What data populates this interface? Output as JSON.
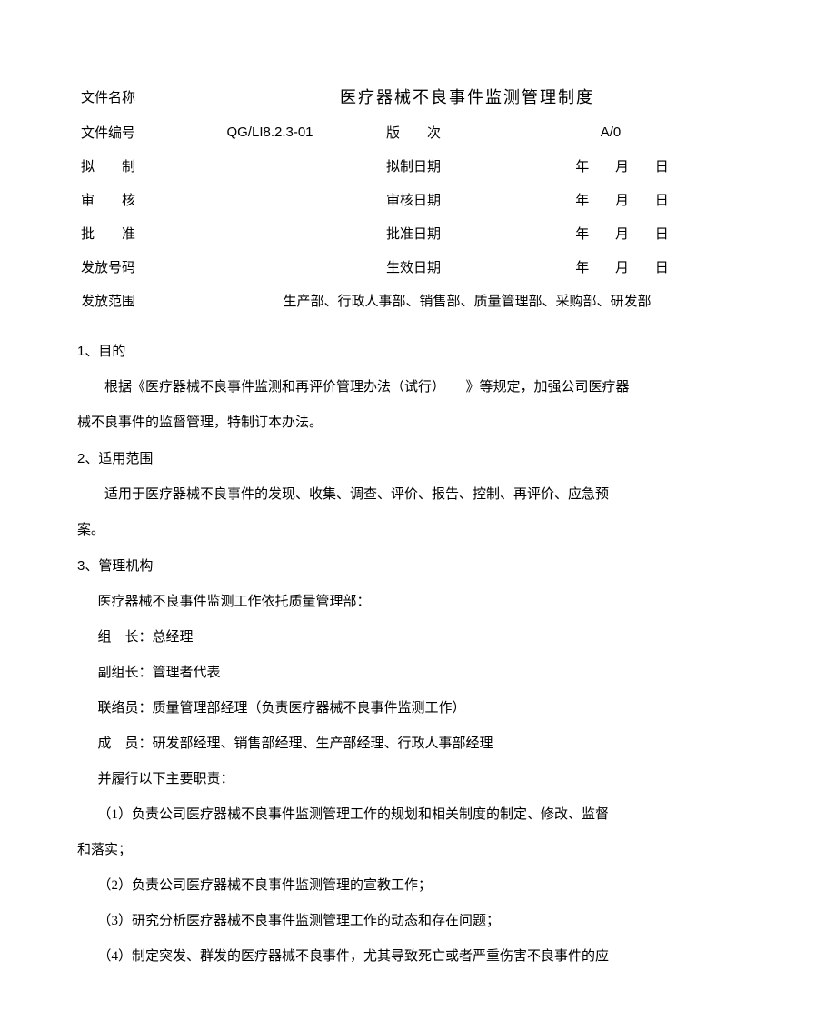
{
  "header": {
    "labels": {
      "doc_name": "文件名称",
      "doc_no": "文件编号",
      "version": "版　　次",
      "draft": "拟　　制",
      "draft_date": "拟制日期",
      "review": "审　　核",
      "review_date": "审核日期",
      "approve": "批　　准",
      "approve_date": "批准日期",
      "issue_no": "发放号码",
      "effective_date": "生效日期",
      "scope": "发放范围"
    },
    "title": "医疗器械不良事件监测管理制度",
    "doc_no_value": "QG/LI8.2.3-01",
    "version_value": "A/0",
    "ymd": {
      "y": "年",
      "m": "月",
      "d": "日"
    },
    "scope_value": "生产部、行政人事部、销售部、质量管理部、采购部、研发部"
  },
  "body": {
    "sec1_no": "1",
    "sec1_title": "、目的",
    "sec1_p1a": "根据《医疗器械不良事件监测和再评价管理办法（试行）　　》等规定，加强公司医疗器",
    "sec1_p1b": "械不良事件的监督管理，特制订本办法。",
    "sec2_no": "2",
    "sec2_title": "、适用范围",
    "sec2_p1a": "适用于医疗器械不良事件的发现、收集、调查、评价、报告、控制、再评价、应急预",
    "sec2_p1b": "案。",
    "sec3_no": "3",
    "sec3_title": "、管理机构",
    "sec3_l1": "医疗器械不良事件监测工作依托质量管理部：",
    "sec3_l2": "组　长：总经理",
    "sec3_l3": "副组长：管理者代表",
    "sec3_l4": "联络员：质量管理部经理（负责医疗器械不良事件监测工作）",
    "sec3_l5": "成　员：研发部经理、销售部经理、生产部经理、行政人事部经理",
    "sec3_l6": "并履行以下主要职责：",
    "sec3_d1a": "（1）负责公司医疗器械不良事件监测管理工作的规划和相关制度的制定、修改、监督",
    "sec3_d1b": "和落实；",
    "sec3_d2": "（2）负责公司医疗器械不良事件监测管理的宣教工作；",
    "sec3_d3": "（3）研究分析医疗器械不良事件监测管理工作的动态和存在问题；",
    "sec3_d4": "（4）制定突发、群发的医疗器械不良事件，尤其导致死亡或者严重伤害不良事件的应"
  }
}
